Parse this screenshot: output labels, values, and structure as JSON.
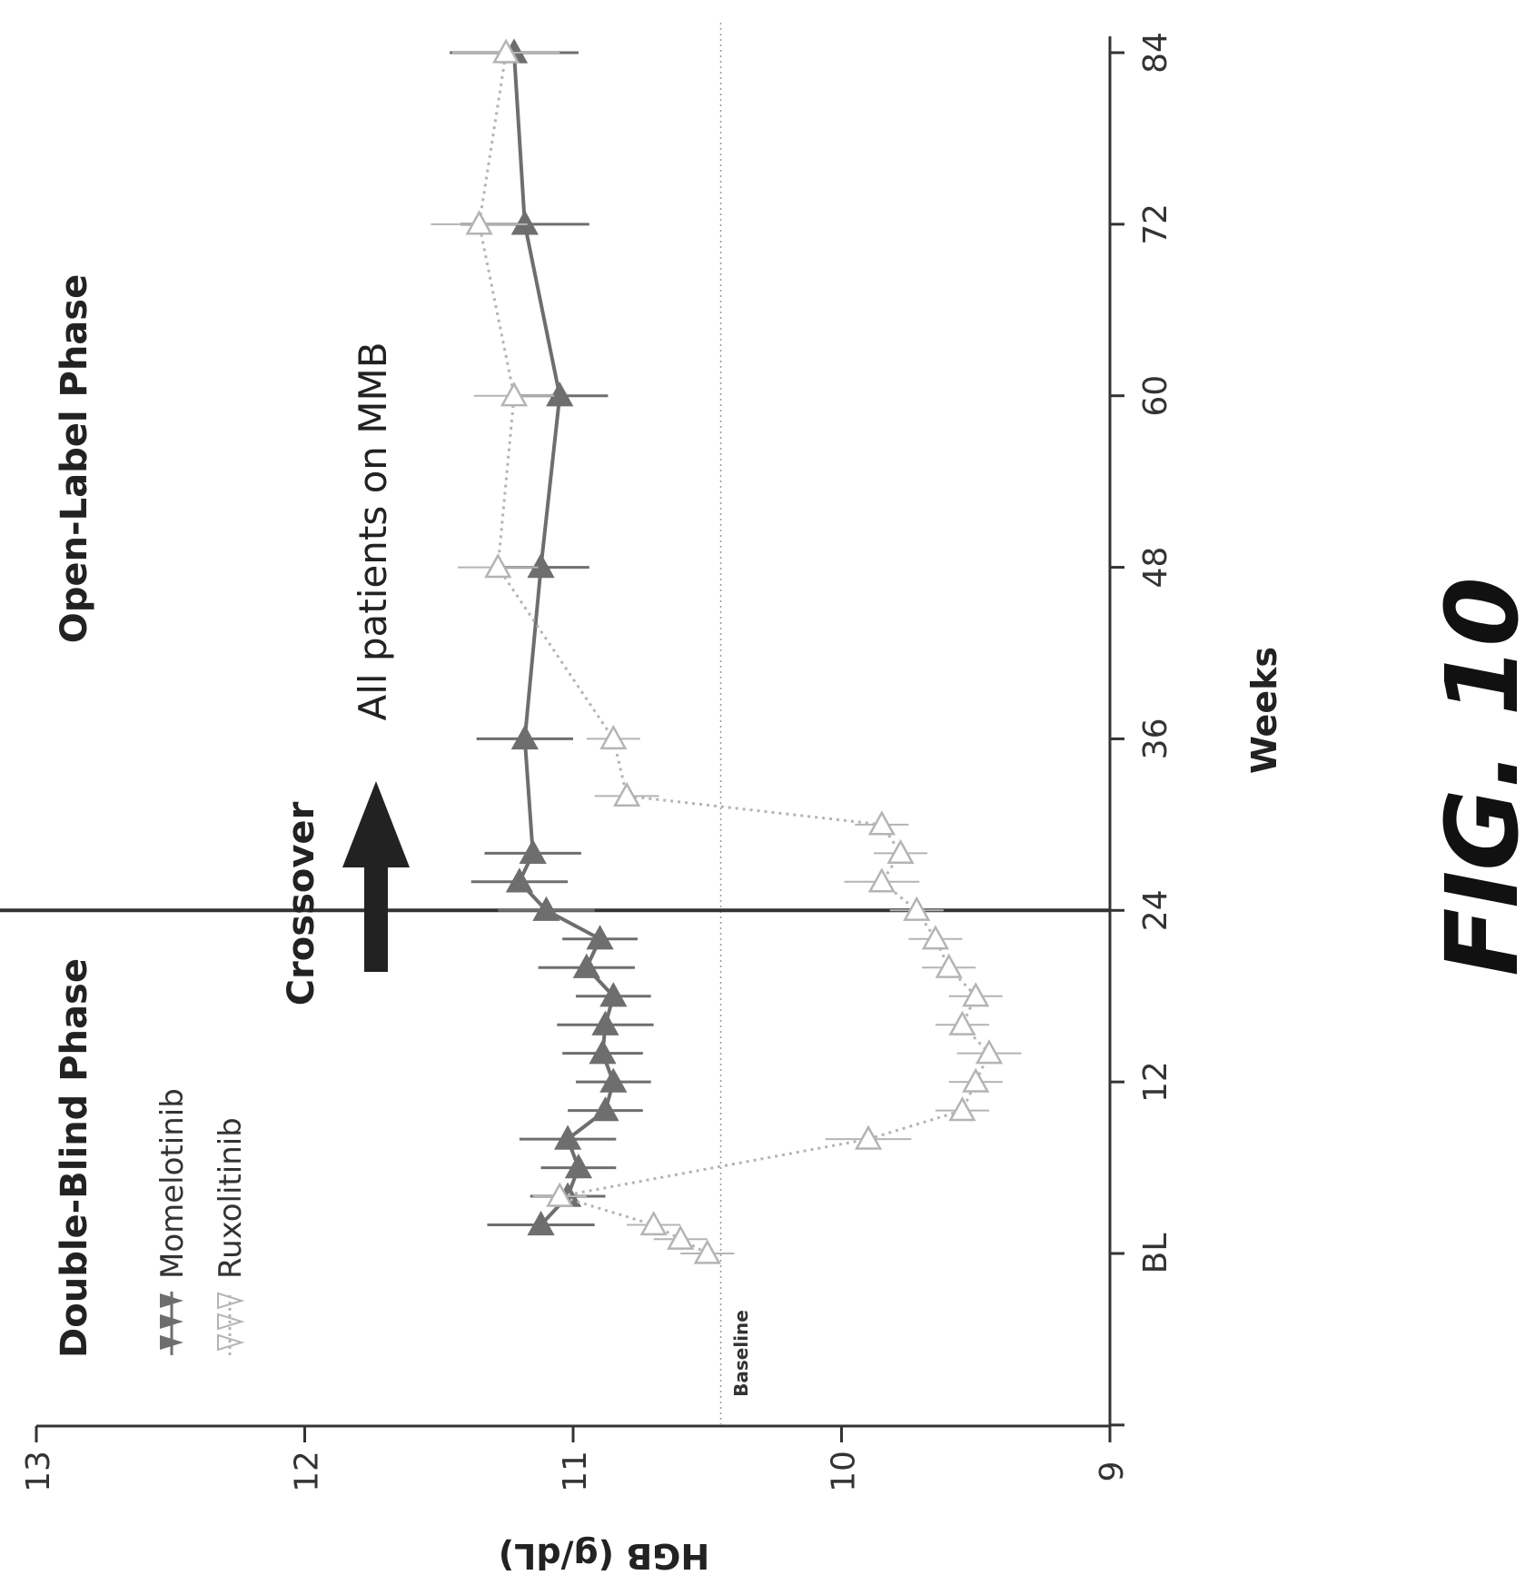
{
  "figure_label": "FIG. 10",
  "annotations": {
    "double_blind": "Double-Blind Phase",
    "open_label": "Open-Label Phase",
    "crossover": "Crossover",
    "all_patients": "All patients on MMB",
    "baseline": "Baseline"
  },
  "colors": {
    "momelotinib": "#6e6e6e",
    "ruxolitinib": "#b4b4b4",
    "axis": "#333333",
    "crossover_line": "#333333",
    "arrow": "#222222"
  },
  "chart_data": {
    "type": "line",
    "orientation": "rotated 90 degrees clockwise (page viewed landscape)",
    "xlabel": "Weeks",
    "ylabel": "HGB (g/dL)",
    "x_ticks": [
      "BL",
      "12",
      "24",
      "36",
      "48",
      "60",
      "72",
      "84"
    ],
    "x_tick_values": [
      0,
      12,
      24,
      36,
      48,
      60,
      72,
      84
    ],
    "xlim": [
      -12,
      88
    ],
    "y_ticks": [
      "9",
      "10",
      "11",
      "12",
      "13"
    ],
    "y_tick_values": [
      9,
      10,
      11,
      12,
      13
    ],
    "ylim": [
      9,
      13
    ],
    "baseline_value": 10.45,
    "crossover_week": 24,
    "legend_position": "top-left",
    "series": [
      {
        "name": "Momelotinib",
        "marker": "filled-triangle",
        "line": "solid",
        "x": [
          2,
          4,
          6,
          8,
          10,
          12,
          14,
          16,
          18,
          20,
          22,
          24,
          26,
          28,
          36,
          48,
          60,
          72,
          84
        ],
        "y": [
          11.12,
          11.02,
          10.98,
          11.02,
          10.88,
          10.85,
          10.89,
          10.88,
          10.85,
          10.95,
          10.9,
          11.1,
          11.2,
          11.15,
          11.18,
          11.12,
          11.05,
          11.18,
          11.22
        ],
        "err": [
          0.2,
          0.14,
          0.14,
          0.18,
          0.14,
          0.14,
          0.15,
          0.18,
          0.14,
          0.18,
          0.14,
          0.18,
          0.18,
          0.18,
          0.18,
          0.18,
          0.18,
          0.24,
          0.24
        ]
      },
      {
        "name": "Ruxolitinib",
        "marker": "open-triangle",
        "line": "dotted",
        "x": [
          0,
          1,
          2,
          4,
          8,
          10,
          12,
          14,
          16,
          18,
          20,
          22,
          24,
          26,
          28,
          30,
          32,
          36,
          48,
          60,
          72,
          84
        ],
        "y": [
          10.5,
          10.6,
          10.7,
          11.05,
          9.9,
          9.55,
          9.5,
          9.45,
          9.55,
          9.5,
          9.6,
          9.65,
          9.72,
          9.85,
          9.78,
          9.85,
          10.8,
          10.85,
          11.28,
          11.22,
          11.35,
          11.25
        ],
        "err": [
          0.1,
          0.1,
          0.1,
          0.1,
          0.16,
          0.1,
          0.1,
          0.12,
          0.1,
          0.1,
          0.1,
          0.1,
          0.1,
          0.14,
          0.1,
          0.1,
          0.12,
          0.1,
          0.15,
          0.15,
          0.18,
          0.2
        ]
      }
    ]
  }
}
